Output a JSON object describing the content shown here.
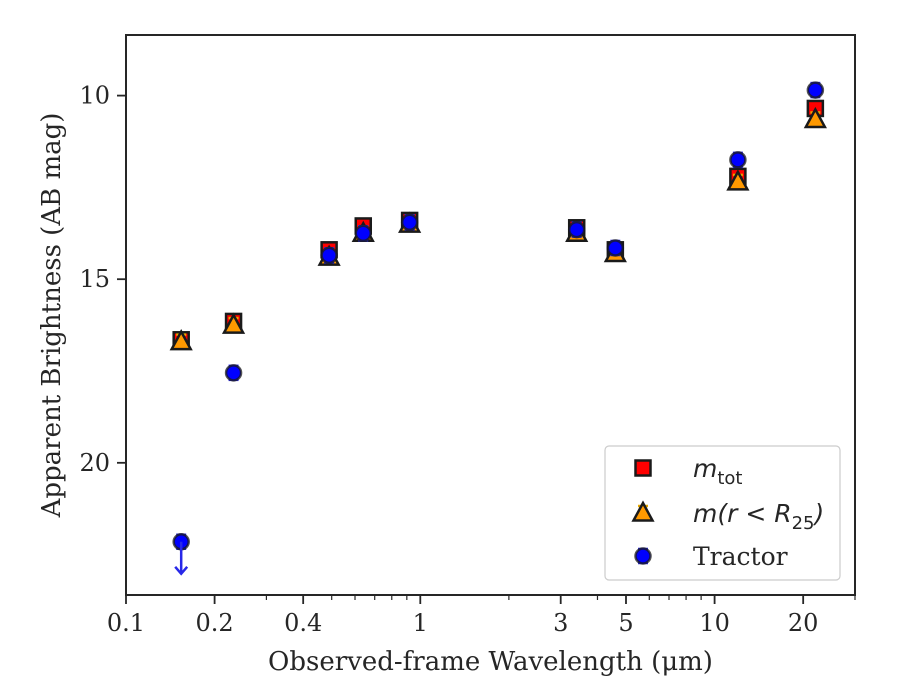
{
  "chart_data": {
    "type": "scatter",
    "title": "",
    "xlabel": "Observed-frame Wavelength (μm)",
    "ylabel": "Apparent Brightness (AB mag)",
    "x_scale": "log",
    "xlim": [
      0.1,
      30
    ],
    "ylim": [
      23.6,
      8.35
    ],
    "y_inverted": true,
    "grid": false,
    "legend_position": "lower-right",
    "x_ticks": [
      {
        "value": 0.1,
        "label": "0.1"
      },
      {
        "value": 0.2,
        "label": "0.2"
      },
      {
        "value": 0.4,
        "label": "0.4"
      },
      {
        "value": 1,
        "label": "1"
      },
      {
        "value": 3,
        "label": "3"
      },
      {
        "value": 5,
        "label": "5"
      },
      {
        "value": 10,
        "label": "10"
      },
      {
        "value": 20,
        "label": "20"
      }
    ],
    "y_ticks": [
      {
        "value": 10,
        "label": "10"
      },
      {
        "value": 15,
        "label": "15"
      },
      {
        "value": 20,
        "label": "20"
      }
    ],
    "series": [
      {
        "name": "m_tot",
        "legend_parts": [
          "m",
          "tot",
          ""
        ],
        "marker": "square",
        "color": "#ff0000",
        "errcolor": "#cc0000",
        "x": [
          0.154,
          0.232,
          0.49,
          0.64,
          0.92,
          3.4,
          4.6,
          12.0,
          22.0
        ],
        "y": [
          16.65,
          16.15,
          14.2,
          13.55,
          13.4,
          13.6,
          14.2,
          12.2,
          10.35
        ]
      },
      {
        "name": "m(r < R25)",
        "legend_parts": [
          "m(r < R",
          "25",
          ")"
        ],
        "marker": "triangle",
        "color": "#ff9900",
        "errcolor": "#e6a800",
        "x": [
          0.154,
          0.232,
          0.49,
          0.64,
          0.92,
          3.4,
          4.6,
          12.0,
          22.0
        ],
        "y": [
          16.7,
          16.25,
          14.4,
          13.75,
          13.5,
          13.75,
          14.3,
          12.35,
          10.65
        ]
      },
      {
        "name": "Tractor",
        "marker": "circle",
        "color": "#0000ff",
        "errcolor": "#2828e8",
        "x": [
          0.154,
          0.232,
          0.49,
          0.64,
          0.92,
          3.4,
          4.6,
          12.0,
          22.0
        ],
        "y": [
          22.15,
          17.55,
          14.35,
          13.75,
          13.45,
          13.65,
          14.15,
          11.75,
          9.85
        ],
        "upper_limit_x": [
          0.154
        ]
      }
    ]
  }
}
